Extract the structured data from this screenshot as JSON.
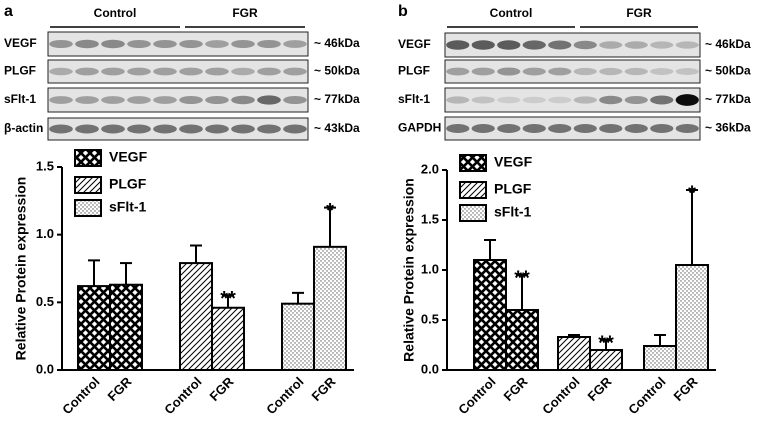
{
  "panels": [
    {
      "letter": "a",
      "groups": [
        "Control",
        "FGR"
      ],
      "blots": [
        {
          "protein": "VEGF",
          "size": "~ 46kDa"
        },
        {
          "protein": "PLGF",
          "size": "~ 50kDa"
        },
        {
          "protein": "sFlt-1",
          "size": "~ 77kDa"
        },
        {
          "protein": "β-actin",
          "size": "~ 43kDa"
        }
      ]
    },
    {
      "letter": "b",
      "groups": [
        "Control",
        "FGR"
      ],
      "blots": [
        {
          "protein": "VEGF",
          "size": "~ 46kDa"
        },
        {
          "protein": "PLGF",
          "size": "~ 50kDa"
        },
        {
          "protein": "sFlt-1",
          "size": "~ 77kDa"
        },
        {
          "protein": "GAPDH",
          "size": "~ 36kDa"
        }
      ]
    }
  ],
  "chart_data": [
    {
      "type": "bar",
      "y_label": "Relative Protein expression",
      "categories": [
        "Control",
        "FGR"
      ],
      "ylim": [
        0,
        1.5
      ],
      "yticks": [
        {
          "value": 0,
          "label": "0.0"
        },
        {
          "value": 0.5,
          "label": "0.5"
        },
        {
          "value": 1,
          "label": "1.0"
        },
        {
          "value": 1.5,
          "label": "1.5"
        }
      ],
      "series": [
        {
          "name": "VEGF",
          "pattern": "crosshatch",
          "values": [
            0.62,
            0.63
          ],
          "errors": [
            0.19,
            0.16
          ],
          "annotations": [
            null,
            null
          ]
        },
        {
          "name": "PLGF",
          "pattern": "diagonal",
          "values": [
            0.79,
            0.46
          ],
          "errors": [
            0.13,
            0.09
          ],
          "annotations": [
            null,
            "**"
          ]
        },
        {
          "name": "sFlt-1",
          "pattern": "dots",
          "values": [
            0.49,
            0.91
          ],
          "errors": [
            0.08,
            0.29
          ],
          "annotations": [
            null,
            "*"
          ]
        }
      ]
    },
    {
      "type": "bar",
      "y_label": "Relative Protein expression",
      "categories": [
        "Control",
        "FGR"
      ],
      "ylim": [
        0,
        2
      ],
      "yticks": [
        {
          "value": 0,
          "label": "0.0"
        },
        {
          "value": 0.5,
          "label": "0.5"
        },
        {
          "value": 1,
          "label": "1.0"
        },
        {
          "value": 1.5,
          "label": "1.5"
        },
        {
          "value": 2,
          "label": "2.0"
        }
      ],
      "series": [
        {
          "name": "VEGF",
          "pattern": "crosshatch",
          "values": [
            1.1,
            0.6
          ],
          "errors": [
            0.2,
            0.35
          ],
          "annotations": [
            null,
            "**"
          ]
        },
        {
          "name": "PLGF",
          "pattern": "diagonal",
          "values": [
            0.33,
            0.2
          ],
          "errors": [
            0.02,
            0.1
          ],
          "annotations": [
            null,
            "**"
          ]
        },
        {
          "name": "sFlt-1",
          "pattern": "dots",
          "values": [
            0.24,
            1.05
          ],
          "errors": [
            0.11,
            0.75
          ],
          "annotations": [
            null,
            "*"
          ]
        }
      ]
    }
  ]
}
